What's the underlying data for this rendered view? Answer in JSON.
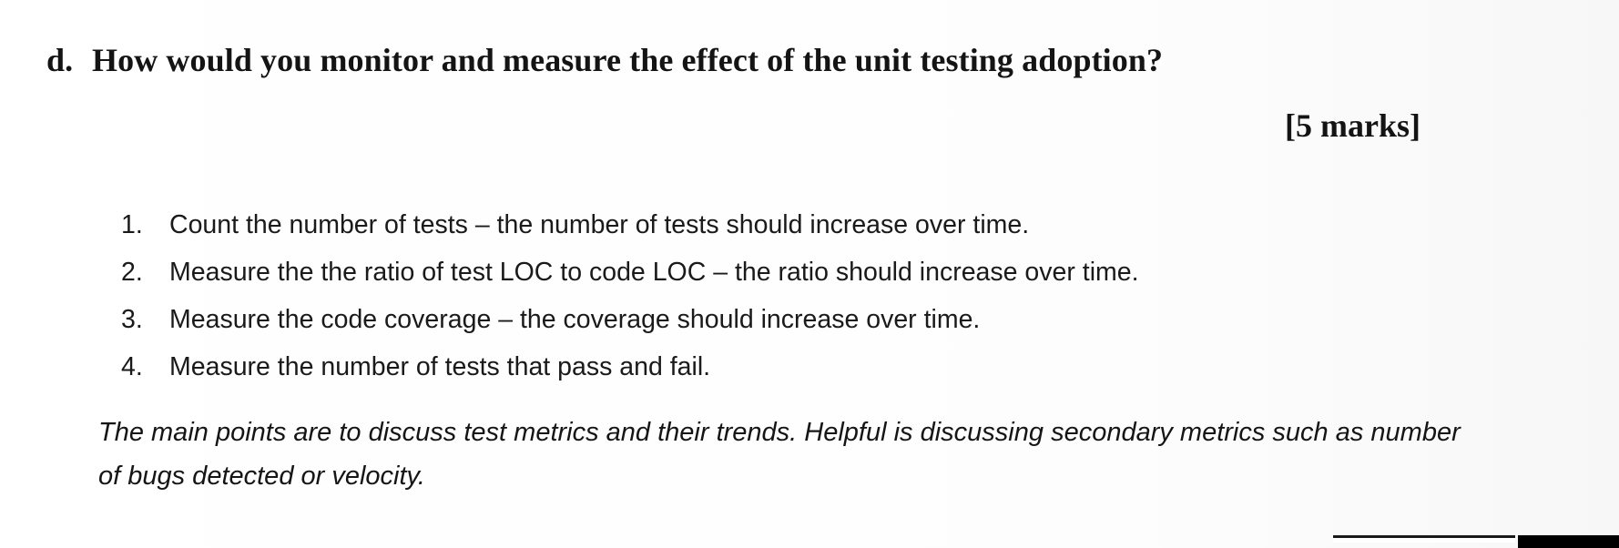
{
  "question": {
    "letter": "d.",
    "text": "How would you monitor and measure the effect of the unit testing adoption?"
  },
  "marks": "[5 marks]",
  "answer_items": [
    {
      "number": "1.",
      "text": "Count the number of tests – the number of tests should increase over time."
    },
    {
      "number": "2.",
      "text": "Measure the the ratio of test LOC to code LOC – the ratio should increase over time."
    },
    {
      "number": "3.",
      "text": "Measure the code coverage – the coverage should increase over time."
    },
    {
      "number": "4.",
      "text": "Measure the number of tests that pass and fail."
    }
  ],
  "note": "The main points are to discuss test metrics and their trends. Helpful is discussing secondary metrics such as number of bugs detected or velocity."
}
